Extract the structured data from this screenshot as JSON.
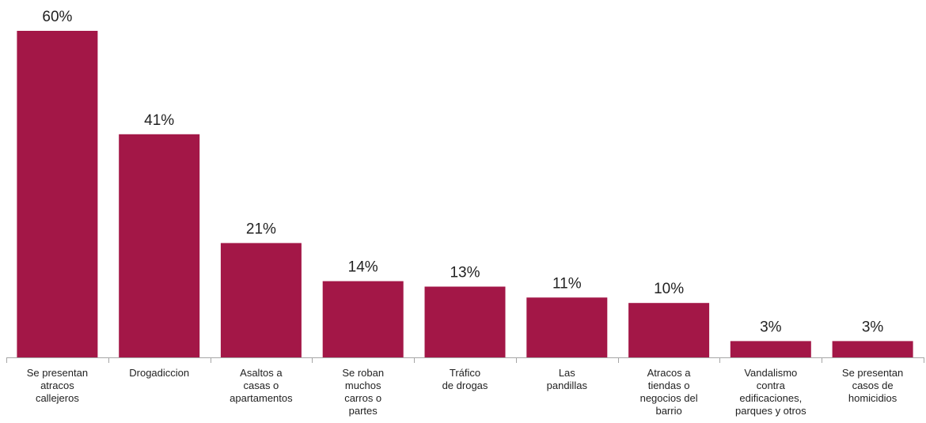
{
  "chart_data": {
    "type": "bar",
    "categories": [
      [
        "Se presentan",
        "atracos",
        "callejeros"
      ],
      [
        "Drogadiccion"
      ],
      [
        "Asaltos a",
        "casas o",
        "apartamentos"
      ],
      [
        "Se roban",
        "muchos",
        "carros o",
        "partes"
      ],
      [
        "Tráfico",
        "de drogas"
      ],
      [
        "Las",
        "pandillas"
      ],
      [
        "Atracos a",
        "tiendas o",
        "negocios del",
        "barrio"
      ],
      [
        "Vandalismo",
        "contra",
        "edificaciones,",
        "parques y otros"
      ],
      [
        "Se presentan",
        "casos de",
        "homicidios"
      ]
    ],
    "values": [
      60,
      41,
      21,
      14,
      13,
      11,
      10,
      3,
      3
    ],
    "value_labels": [
      "60%",
      "41%",
      "21%",
      "14%",
      "13%",
      "11%",
      "10%",
      "3%",
      "3%"
    ],
    "unit": "%",
    "ylim": [
      0,
      60
    ],
    "grid": false,
    "legend": "none",
    "colors": {
      "bar": "#A31747",
      "axis": "#A6A6A6",
      "text": "#222222"
    }
  }
}
